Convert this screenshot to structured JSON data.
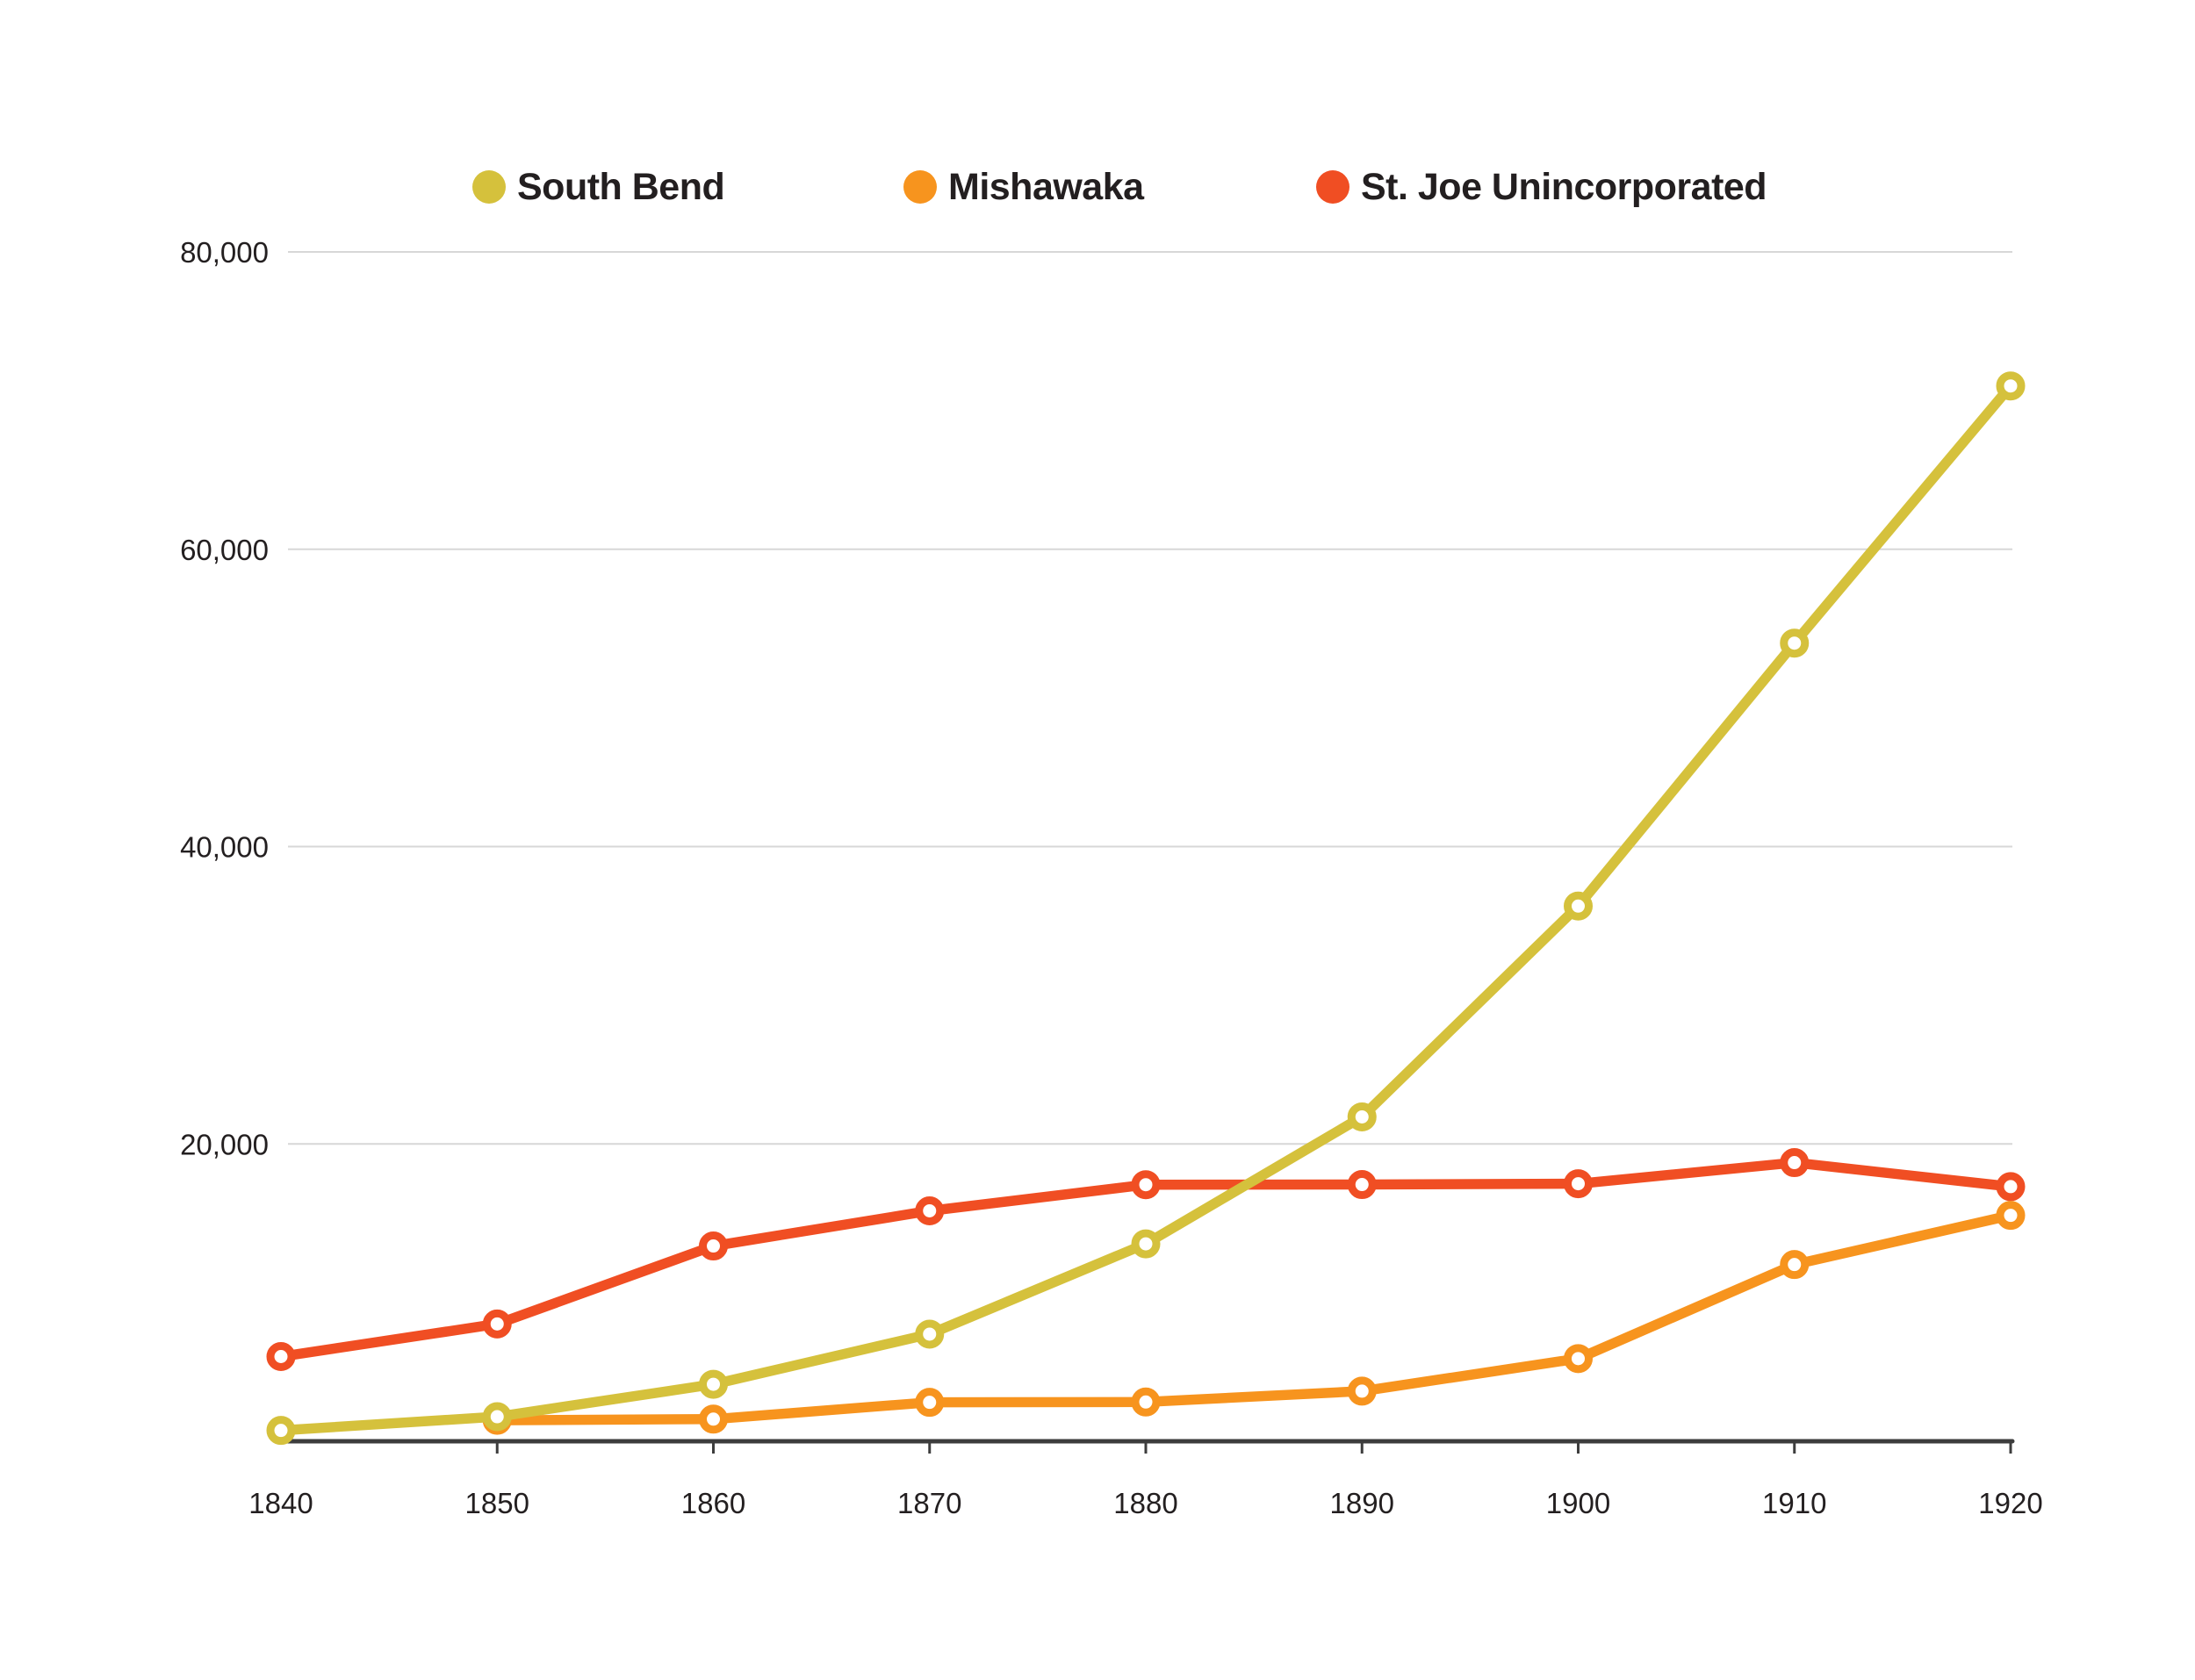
{
  "chart_data": {
    "type": "line",
    "title": "",
    "xlabel": "",
    "ylabel": "",
    "categories": [
      "1840",
      "1850",
      "1860",
      "1870",
      "1880",
      "1890",
      "1900",
      "1910",
      "1920"
    ],
    "series": [
      {
        "name": "South Bend",
        "color": "#d5c13c",
        "values": [
          728,
          1652,
          3832,
          7206,
          13280,
          21819,
          35999,
          53684,
          70983
        ]
      },
      {
        "name": "Mishawaka",
        "color": "#f7941e",
        "values": [
          null,
          1412,
          1488,
          2617,
          2640,
          3371,
          5560,
          11886,
          15195
        ]
      },
      {
        "name": "St. Joe Unincorporated",
        "color": "#f04e23",
        "values": [
          5697,
          7890,
          13135,
          15499,
          17258,
          17267,
          17322,
          18742,
          17126
        ]
      }
    ],
    "y_ticks": [
      {
        "value": 20000,
        "label": "20,000"
      },
      {
        "value": 40000,
        "label": "40,000"
      },
      {
        "value": 60000,
        "label": "60,000"
      },
      {
        "value": 80000,
        "label": "80,000"
      }
    ],
    "ylim": [
      0,
      80000
    ],
    "grid": "horizontal",
    "legend_position": "top",
    "colors": {
      "text": "#231f20",
      "gridline": "#d7d7d7",
      "axis": "#3d3d3d",
      "background": "#ffffff"
    }
  }
}
